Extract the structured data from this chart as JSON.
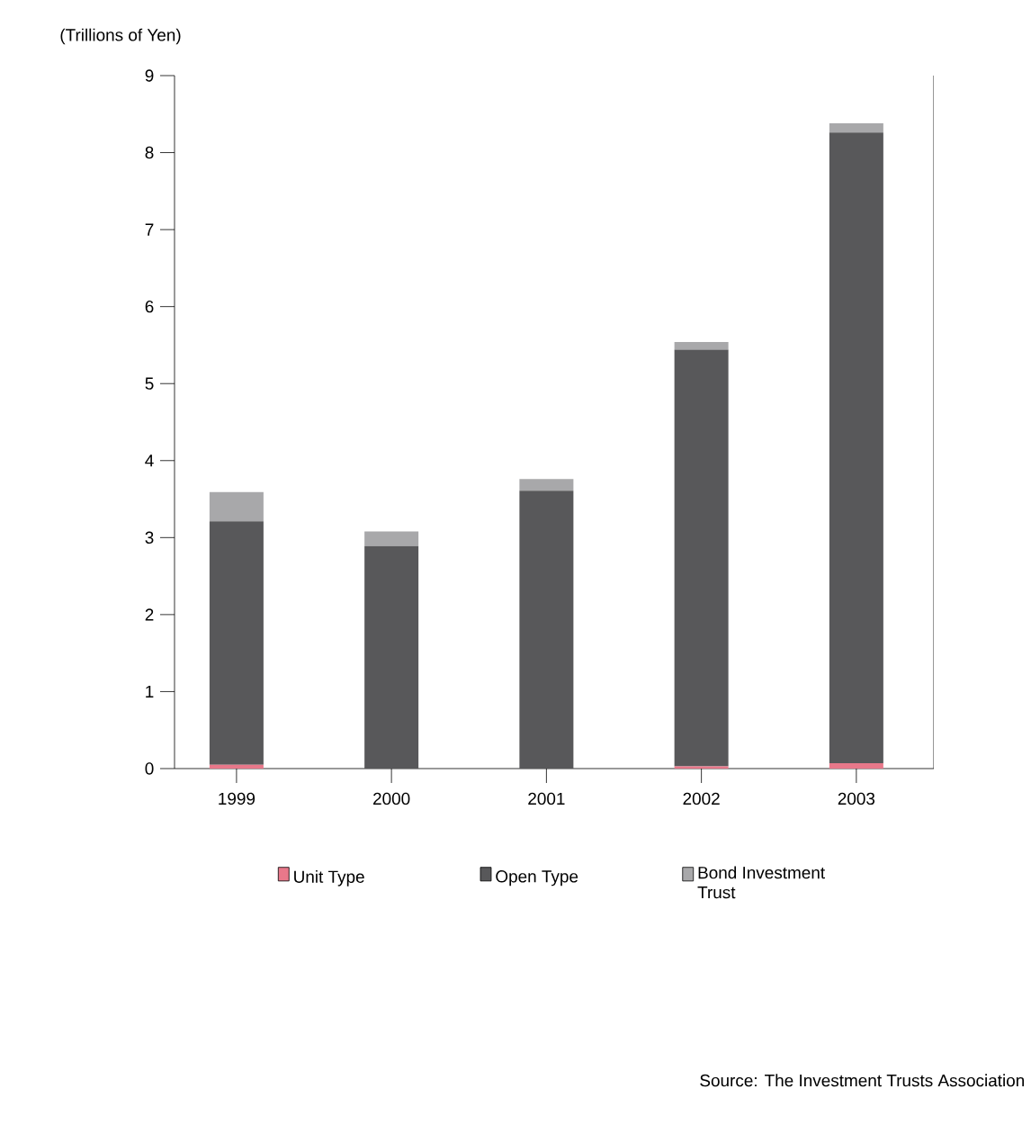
{
  "chart_data": {
    "type": "bar",
    "stacked": true,
    "ylabel": "(Trillions of Yen)",
    "categories": [
      "1999",
      "2000",
      "2001",
      "2002",
      "2003"
    ],
    "series": [
      {
        "name": "Unit Type",
        "color": "#e8788a",
        "values": [
          0.05,
          0,
          0,
          0.03,
          0.07
        ]
      },
      {
        "name": "Open Type",
        "color": "#58585a",
        "values": [
          3.16,
          2.89,
          3.61,
          5.41,
          8.19
        ]
      },
      {
        "name": "Bond Investment Trust",
        "color": "#a8a8aa",
        "values": [
          0.38,
          0.19,
          0.15,
          0.1,
          0.12
        ]
      }
    ],
    "ylim": [
      0,
      9
    ],
    "yticks": [
      0,
      1,
      2,
      3,
      4,
      5,
      6,
      7,
      8,
      9
    ],
    "grid": false,
    "legend": "bottom",
    "annotations": [
      "Source:   The Investment Trusts Association"
    ]
  }
}
